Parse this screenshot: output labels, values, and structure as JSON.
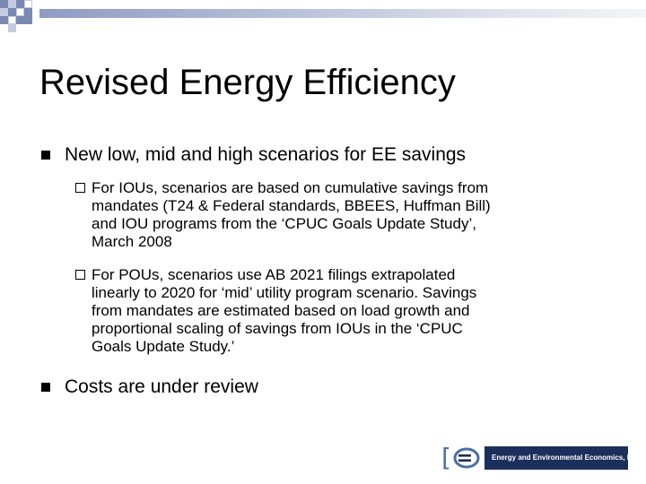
{
  "slide": {
    "title": "Revised Energy Efficiency",
    "bullets": [
      {
        "text": "New low, mid and high scenarios for EE savings",
        "sub_bullets": [
          {
            "lines": [
              "For IOUs, scenarios are based on cumulative savings from",
              "mandates (T24 & Federal standards, BBEES, Huffman Bill)",
              "and IOU programs from the ‘CPUC Goals Update Study’,",
              "March 2008"
            ]
          },
          {
            "lines": [
              "For POUs, scenarios use AB 2021 filings extrapolated",
              "linearly to 2020 for ‘mid’ utility program scenario.  Savings",
              "from mandates are estimated based on load growth and",
              "proportional scaling of savings from IOUs in the ‘CPUC",
              "Goals Update Study.’"
            ]
          }
        ]
      },
      {
        "text": "Costs are under review",
        "sub_bullets": []
      }
    ]
  },
  "logo": {
    "name": "Energy and Environmental Economics, Inc.",
    "bracket_color": "#4a6ea8",
    "box_color": "#1b2f5c"
  },
  "colors": {
    "accent": "#7a88b4",
    "accent_light": "#c6cce0"
  }
}
